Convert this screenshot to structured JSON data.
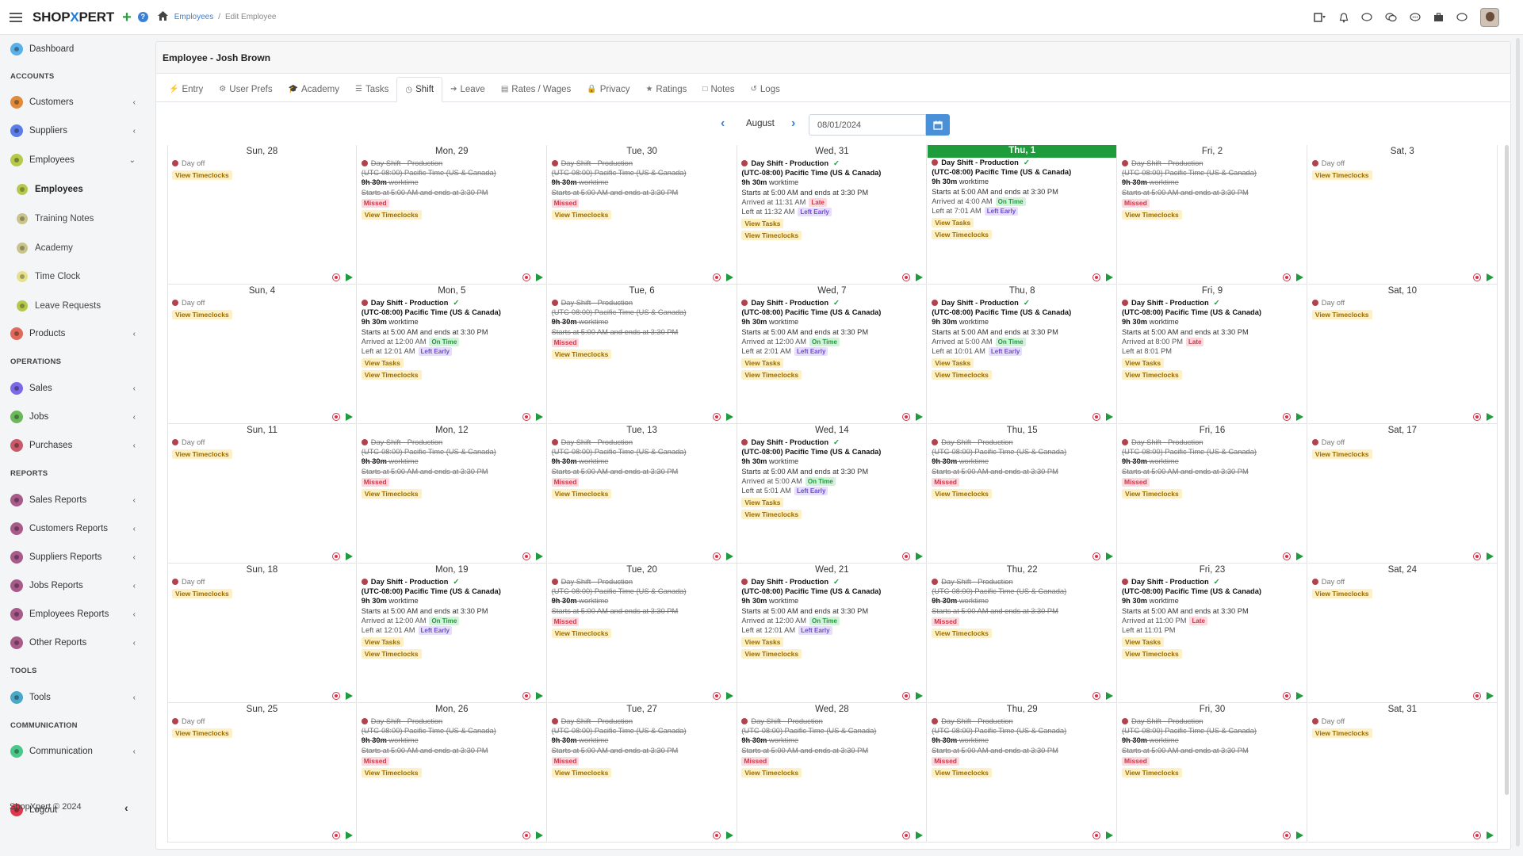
{
  "brand": {
    "prefix": "SHOP",
    "x": "X",
    "suffix": "PERT"
  },
  "breadcrumb": {
    "item1": "Employees",
    "item2": "Edit Employee"
  },
  "sidebar": {
    "dashboard": "Dashboard",
    "accounts_head": "ACCOUNTS",
    "customers": "Customers",
    "suppliers": "Suppliers",
    "employees": "Employees",
    "sub_employees": "Employees",
    "sub_training": "Training Notes",
    "sub_academy": "Academy",
    "sub_timeclock": "Time Clock",
    "sub_leave": "Leave Requests",
    "products": "Products",
    "operations_head": "OPERATIONS",
    "sales": "Sales",
    "jobs": "Jobs",
    "purchases": "Purchases",
    "reports_head": "REPORTS",
    "sales_reports": "Sales Reports",
    "customers_reports": "Customers Reports",
    "suppliers_reports": "Suppliers Reports",
    "jobs_reports": "Jobs Reports",
    "employees_reports": "Employees Reports",
    "other_reports": "Other Reports",
    "tools_head": "TOOLS",
    "tools": "Tools",
    "communication_head": "COMMUNICATION",
    "communication": "Communication",
    "logout": "Logout",
    "footer": "ShopXpert © 2024"
  },
  "page_title": "Employee - Josh Brown",
  "tabs": [
    "Entry",
    "User Prefs",
    "Academy",
    "Tasks",
    "Shift",
    "Leave",
    "Rates / Wages",
    "Privacy",
    "Ratings",
    "Notes",
    "Logs"
  ],
  "active_tab": "Shift",
  "calendar": {
    "month": "August",
    "date_value": "08/01/2024",
    "shift_title": "Day Shift - Production",
    "timezone": "(UTC-08:00) Pacific Time (US & Canada)",
    "worktime_bold": "9h 30m",
    "worktime_rest": " worktime",
    "schedule": "Starts at 5:00 AM and ends at 3:30 PM",
    "day_off": "Day off",
    "view_timeclocks": "View Timeclocks",
    "view_tasks": "View Tasks",
    "missed": "Missed",
    "on_time": "On Time",
    "late": "Late",
    "left_early": "Left Early",
    "days": [
      {
        "label": "Sun, 28",
        "kind": "off"
      },
      {
        "label": "Mon, 29",
        "kind": "missed"
      },
      {
        "label": "Tue, 30",
        "kind": "missed"
      },
      {
        "label": "Wed, 31",
        "kind": "worked",
        "arrived": "Arrived at 11:31 AM",
        "arr_badge": "late",
        "left": "Left at 11:32 AM",
        "left_badge": "early"
      },
      {
        "label": "Thu, 1",
        "kind": "worked",
        "today": true,
        "arrived": "Arrived at 4:00 AM",
        "arr_badge": "ontime",
        "left": "Left at 7:01 AM",
        "left_badge": "early"
      },
      {
        "label": "Fri, 2",
        "kind": "missed"
      },
      {
        "label": "Sat, 3",
        "kind": "off"
      },
      {
        "label": "Sun, 4",
        "kind": "off"
      },
      {
        "label": "Mon, 5",
        "kind": "worked",
        "arrived": "Arrived at 12:00 AM",
        "arr_badge": "ontime",
        "left": "Left at 12:01 AM",
        "left_badge": "early"
      },
      {
        "label": "Tue, 6",
        "kind": "missed"
      },
      {
        "label": "Wed, 7",
        "kind": "worked",
        "arrived": "Arrived at 12:00 AM",
        "arr_badge": "ontime",
        "left": "Left at 2:01 AM",
        "left_badge": "early"
      },
      {
        "label": "Thu, 8",
        "kind": "worked",
        "arrived": "Arrived at 5:00 AM",
        "arr_badge": "ontime",
        "left": "Left at 10:01 AM",
        "left_badge": "early"
      },
      {
        "label": "Fri, 9",
        "kind": "worked",
        "arrived": "Arrived at 8:00 PM",
        "arr_badge": "late",
        "left": "Left at 8:01 PM",
        "left_badge": ""
      },
      {
        "label": "Sat, 10",
        "kind": "off"
      },
      {
        "label": "Sun, 11",
        "kind": "off"
      },
      {
        "label": "Mon, 12",
        "kind": "missed"
      },
      {
        "label": "Tue, 13",
        "kind": "missed"
      },
      {
        "label": "Wed, 14",
        "kind": "worked",
        "arrived": "Arrived at 5:00 AM",
        "arr_badge": "ontime",
        "left": "Left at 5:01 AM",
        "left_badge": "early"
      },
      {
        "label": "Thu, 15",
        "kind": "missed"
      },
      {
        "label": "Fri, 16",
        "kind": "missed"
      },
      {
        "label": "Sat, 17",
        "kind": "off"
      },
      {
        "label": "Sun, 18",
        "kind": "off"
      },
      {
        "label": "Mon, 19",
        "kind": "worked",
        "arrived": "Arrived at 12:00 AM",
        "arr_badge": "ontime",
        "left": "Left at 12:01 AM",
        "left_badge": "early"
      },
      {
        "label": "Tue, 20",
        "kind": "missed"
      },
      {
        "label": "Wed, 21",
        "kind": "worked",
        "arrived": "Arrived at 12:00 AM",
        "arr_badge": "ontime",
        "left": "Left at 12:01 AM",
        "left_badge": "early"
      },
      {
        "label": "Thu, 22",
        "kind": "missed"
      },
      {
        "label": "Fri, 23",
        "kind": "worked",
        "arrived": "Arrived at 11:00 PM",
        "arr_badge": "late",
        "left": "Left at 11:01 PM",
        "left_badge": ""
      },
      {
        "label": "Sat, 24",
        "kind": "off"
      },
      {
        "label": "Sun, 25",
        "kind": "off"
      },
      {
        "label": "Mon, 26",
        "kind": "missed"
      },
      {
        "label": "Tue, 27",
        "kind": "missed"
      },
      {
        "label": "Wed, 28",
        "kind": "missed"
      },
      {
        "label": "Thu, 29",
        "kind": "missed"
      },
      {
        "label": "Fri, 30",
        "kind": "missed"
      },
      {
        "label": "Sat, 31",
        "kind": "off"
      }
    ]
  },
  "colors": {
    "accent": "#3c7fd6",
    "today": "#1e9c3c",
    "missed": "#d6334a",
    "dot": "#b5414f"
  }
}
